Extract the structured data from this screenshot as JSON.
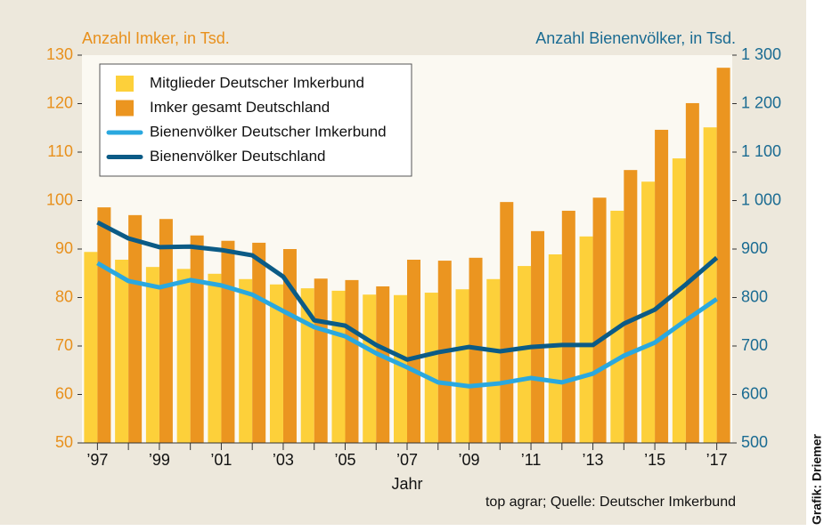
{
  "chart_data": {
    "type": "bar_line",
    "ylabel": "Anzahl Imker, in Tsd.",
    "y2label": "Anzahl Bienenvölker, in Tsd.",
    "xlabel": "Jahr",
    "source": "top agrar; Quelle: Deutscher Imkerbund",
    "credit": "Grafik: Driemer",
    "categories": [
      "’97",
      null,
      "’99",
      null,
      "’01",
      null,
      "’03",
      null,
      "’05",
      null,
      "’07",
      null,
      "’09",
      null,
      "’11",
      null,
      "’13",
      null,
      "’15",
      null,
      "’17"
    ],
    "ylim": [
      50,
      130
    ],
    "yticks": [
      50,
      60,
      70,
      80,
      90,
      100,
      110,
      120,
      130
    ],
    "y2lim": [
      500,
      1300
    ],
    "y2ticks": [
      500,
      600,
      700,
      800,
      900,
      {
        "value": 1000,
        "label": "1 000"
      },
      {
        "value": 1100,
        "label": "1 100"
      },
      {
        "value": 1200,
        "label": "1 200"
      },
      {
        "value": 1300,
        "label": "1 300"
      }
    ],
    "legend": "upper left",
    "series": [
      {
        "name": "Mitglieder Deutscher Imkerbund",
        "kind": "bar",
        "color": "#fdd03a",
        "values": [
          89.4,
          87.8,
          86.3,
          85.9,
          84.9,
          83.8,
          82.7,
          81.9,
          81.4,
          80.6,
          80.5,
          81,
          81.7,
          83.8,
          86.5,
          88.9,
          92.6,
          97.9,
          103.9,
          108.7,
          115.1
        ]
      },
      {
        "name": "Imker gesamt Deutschland",
        "kind": "bar",
        "color": "#eb9520",
        "values": [
          98.6,
          97,
          96.2,
          92.8,
          91.7,
          91.3,
          90,
          83.9,
          83.6,
          82.3,
          87.8,
          87.6,
          88.2,
          99.7,
          93.7,
          97.9,
          100.6,
          106.3,
          114.6,
          120.1,
          127.4
        ]
      },
      {
        "name": "Bienenvölker Deutscher Imkerbund",
        "kind": "line",
        "axis": "y2",
        "color": "#2aa8df",
        "values": [
          871,
          834,
          821,
          836,
          825,
          806,
          772,
          739,
          720,
          685,
          656,
          625,
          617,
          623,
          634,
          625,
          643,
          680,
          707,
          753,
          797
        ]
      },
      {
        "name": "Bienenvölker Deutschland",
        "kind": "line",
        "axis": "y2",
        "color": "#0b5b86",
        "values": [
          955,
          922,
          904,
          905,
          898,
          887,
          843,
          753,
          742,
          702,
          672,
          687,
          698,
          689,
          698,
          702,
          702,
          746,
          775,
          827,
          882
        ]
      }
    ]
  }
}
